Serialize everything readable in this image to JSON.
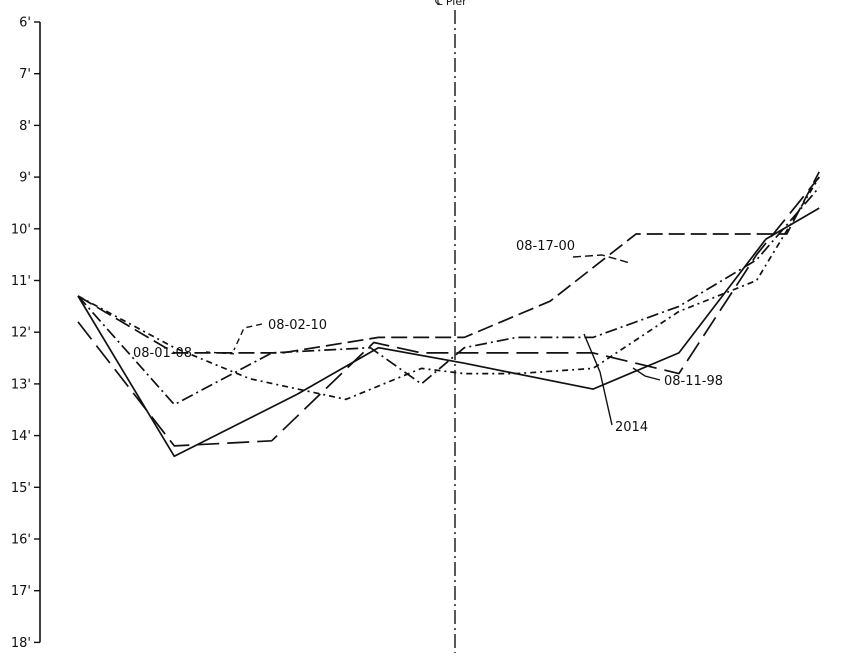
{
  "chart_data": {
    "type": "line",
    "title": "",
    "xlabel": "",
    "ylabel": "",
    "ylim": [
      18,
      6
    ],
    "y_ticks": [
      "6'",
      "7'",
      "8'",
      "9'",
      "10'",
      "11'",
      "12'",
      "13'",
      "14'",
      "15'",
      "16'",
      "17'",
      "18'"
    ],
    "centerline_label": "℄ Pier",
    "grid": false,
    "series": [
      {
        "name": "2014",
        "style": "solid",
        "x": [
          0,
          8.3,
          18.9,
          25.9,
          33.3,
          44.4,
          51.8,
          59.3,
          63.9
        ],
        "values": [
          11.3,
          14.4,
          13.2,
          12.3,
          12.6,
          13.1,
          12.4,
          10.2,
          9.6
        ]
      },
      {
        "name": "08-11-98",
        "style": "long-dash",
        "x": [
          0,
          8.3,
          16.7,
          25.5,
          29.6,
          37.8,
          44.4,
          51.8,
          58.5,
          63.9
        ],
        "values": [
          11.8,
          14.2,
          14.1,
          12.2,
          12.4,
          12.4,
          12.4,
          12.8,
          10.5,
          9.0
        ]
      },
      {
        "name": "08-17-00",
        "style": "dash",
        "x": [
          0,
          8.3,
          17.6,
          25.9,
          33.3,
          40.7,
          48.1,
          55.6,
          61.1,
          63.9
        ],
        "values": [
          11.3,
          12.4,
          12.4,
          12.1,
          12.1,
          11.4,
          10.1,
          10.1,
          10.1,
          8.9
        ]
      },
      {
        "name": "08-02-10",
        "style": "dash-dot",
        "x": [
          0,
          8.3,
          16.7,
          25.2,
          29.6,
          33.3,
          37.8,
          44.4,
          51.8,
          58.5,
          63.9
        ],
        "values": [
          11.3,
          13.4,
          12.4,
          12.3,
          13.0,
          12.3,
          12.1,
          12.1,
          11.5,
          10.6,
          9.2
        ]
      },
      {
        "name": "08-01-08",
        "style": "short-dash",
        "x": [
          0,
          8.3,
          14.8,
          23.1,
          29.6,
          33.3,
          37.8,
          44.4,
          51.8,
          58.5,
          63.9
        ],
        "values": [
          11.3,
          12.3,
          12.9,
          13.3,
          12.7,
          12.8,
          12.8,
          12.7,
          11.6,
          11.0,
          9.0
        ]
      }
    ]
  }
}
